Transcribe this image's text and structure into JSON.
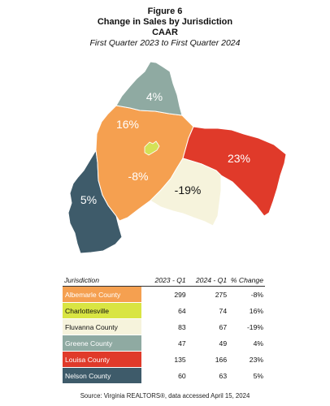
{
  "header": {
    "figure": "Figure 6",
    "title": "Change in Sales by Jurisdiction",
    "org": "CAAR",
    "subtitle": "First Quarter 2023 to First Quarter 2024"
  },
  "map": {
    "labels": {
      "greene": "4%",
      "albemarle": "-8%",
      "charlottesville": "16%",
      "louisa": "23%",
      "fluvanna": "-19%",
      "nelson": "5%"
    },
    "colors": {
      "albemarle": "#f5a050",
      "charlottesville": "#d4e157",
      "fluvanna": "#f6f3dc",
      "greene": "#8faaa2",
      "louisa": "#e03a2a",
      "nelson": "#3e5b6a"
    }
  },
  "table": {
    "headers": [
      "Jurisdiction",
      "2023 - Q1",
      "2024 - Q1",
      "% Change"
    ],
    "rows": [
      {
        "name": "Albemarle County",
        "q2023": "299",
        "q2024": "275",
        "change": "-8%",
        "color": "#f5a050",
        "text_color": "#ffffff"
      },
      {
        "name": "Charlottesville",
        "q2023": "64",
        "q2024": "74",
        "change": "16%",
        "color": "#d9e543",
        "text_color": "#111111"
      },
      {
        "name": "Fluvanna County",
        "q2023": "83",
        "q2024": "67",
        "change": "-19%",
        "color": "#f6f3dc",
        "text_color": "#111111"
      },
      {
        "name": "Greene County",
        "q2023": "47",
        "q2024": "49",
        "change": "4%",
        "color": "#8faaa2",
        "text_color": "#ffffff"
      },
      {
        "name": "Louisa County",
        "q2023": "135",
        "q2024": "166",
        "change": "23%",
        "color": "#e03a2a",
        "text_color": "#ffffff"
      },
      {
        "name": "Nelson County",
        "q2023": "60",
        "q2024": "63",
        "change": "5%",
        "color": "#3e5b6a",
        "text_color": "#ffffff"
      }
    ],
    "source": "Source: Virginia REALTORS®, data accessed April 15, 2024"
  }
}
